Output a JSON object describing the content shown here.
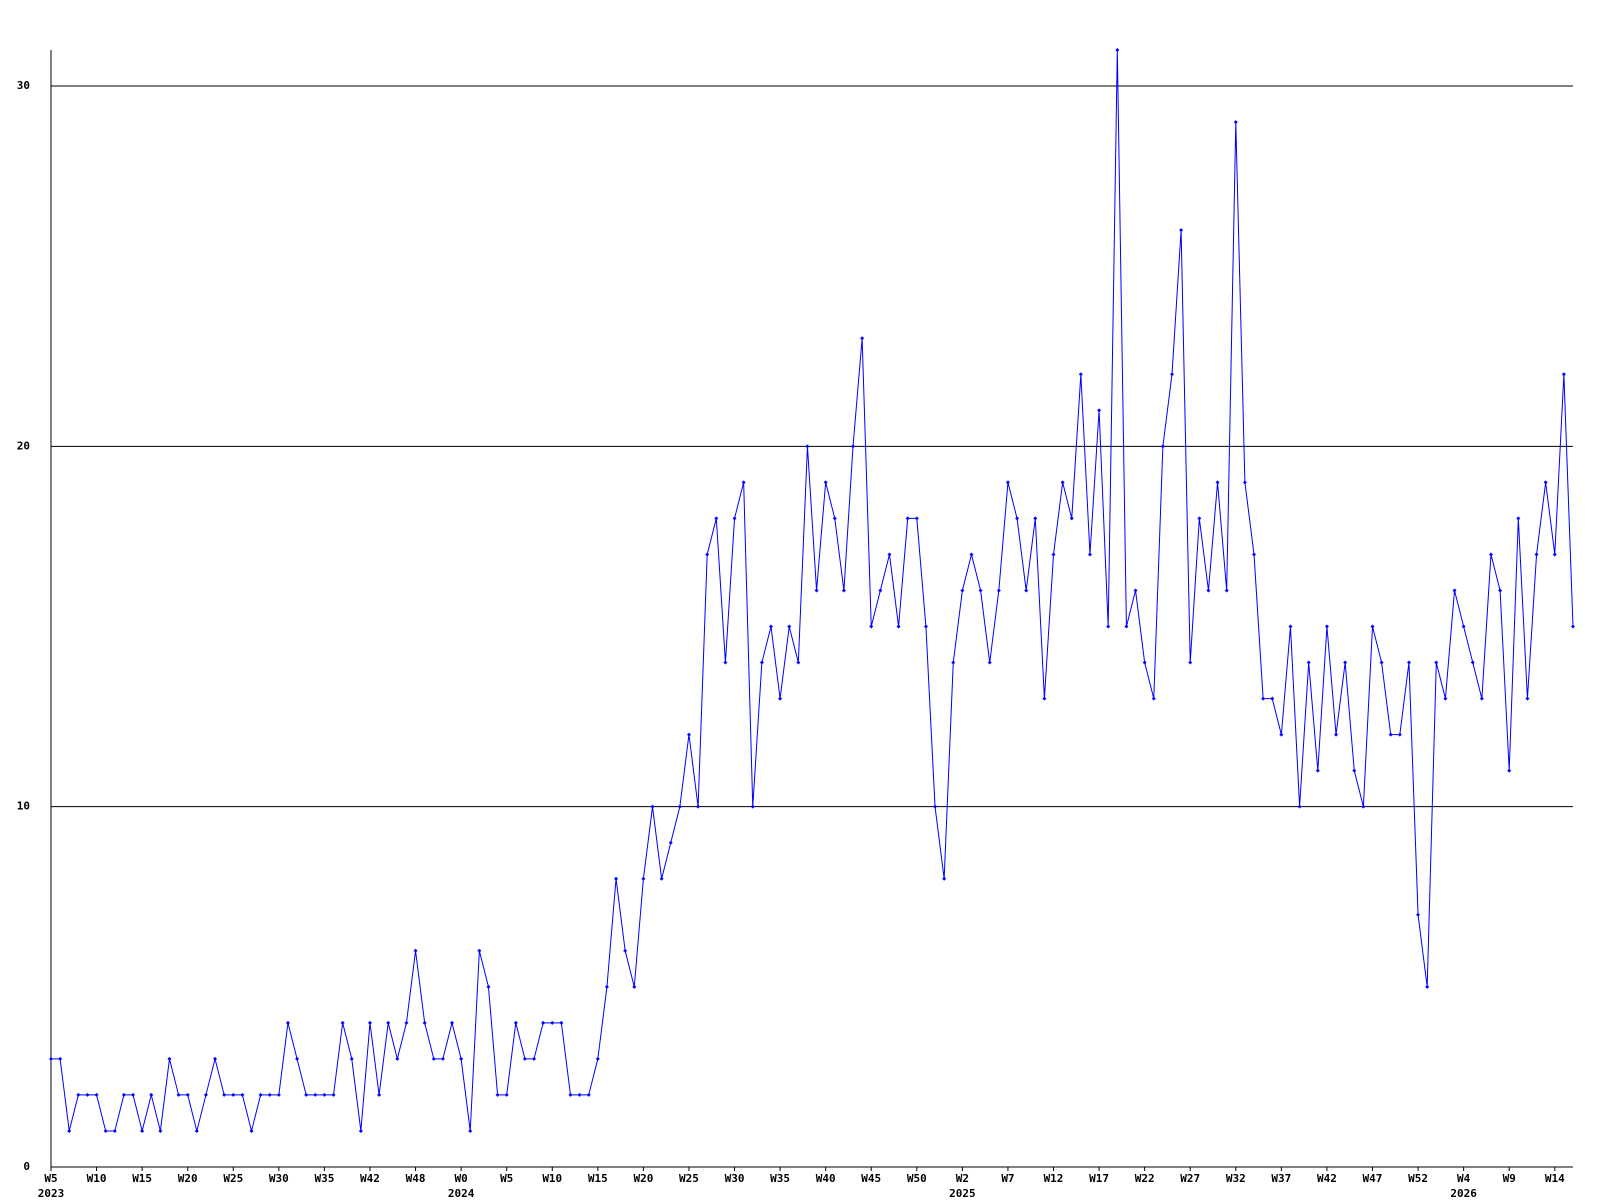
{
  "chart_data": {
    "type": "line",
    "categories": [
      "W5",
      null,
      null,
      null,
      null,
      "W10",
      null,
      null,
      null,
      null,
      "W15",
      null,
      null,
      null,
      null,
      "W20",
      null,
      null,
      null,
      null,
      "W25",
      null,
      null,
      null,
      null,
      "W30",
      null,
      null,
      null,
      null,
      "W35",
      null,
      null,
      null,
      null,
      "W42",
      null,
      null,
      null,
      null,
      "W48",
      null,
      null,
      null,
      null,
      "W0",
      null,
      null,
      null,
      null,
      "W5",
      null,
      null,
      null,
      null,
      "W10",
      null,
      null,
      null,
      null,
      "W15",
      null,
      null,
      null,
      null,
      "W20",
      null,
      null,
      null,
      null,
      "W25",
      null,
      null,
      null,
      null,
      "W30",
      null,
      null,
      null,
      null,
      "W35",
      null,
      null,
      null,
      null,
      "W40",
      null,
      null,
      null,
      null,
      "W45",
      null,
      null,
      null,
      null,
      "W50",
      null,
      null,
      null,
      null,
      "W2",
      null,
      null,
      null,
      null,
      "W7",
      null,
      null,
      null,
      null,
      "W12",
      null,
      null,
      null,
      null,
      "W17",
      null,
      null,
      null,
      null,
      "W22",
      null,
      null,
      null,
      null,
      "W27",
      null,
      null,
      null,
      null,
      "W32",
      null,
      null,
      null,
      null,
      "W37",
      null,
      null,
      null,
      null,
      "W42",
      null,
      null,
      null,
      null,
      "W47",
      null,
      null,
      null,
      null,
      "W52",
      null,
      null,
      null,
      null,
      "W4",
      null,
      null,
      null,
      null,
      "W9",
      null,
      null,
      null,
      null,
      "W14",
      null,
      null
    ],
    "year_labels": [
      "2023",
      null,
      null,
      null,
      null,
      null,
      null,
      null,
      null,
      null,
      null,
      null,
      null,
      null,
      null,
      null,
      null,
      null,
      null,
      null,
      null,
      null,
      null,
      null,
      null,
      null,
      null,
      null,
      null,
      null,
      null,
      null,
      null,
      null,
      null,
      null,
      null,
      null,
      null,
      null,
      null,
      null,
      null,
      null,
      null,
      "2024",
      null,
      null,
      null,
      null,
      null,
      null,
      null,
      null,
      null,
      null,
      null,
      null,
      null,
      null,
      null,
      null,
      null,
      null,
      null,
      null,
      null,
      null,
      null,
      null,
      null,
      null,
      null,
      null,
      null,
      null,
      null,
      null,
      null,
      null,
      null,
      null,
      null,
      null,
      null,
      null,
      null,
      null,
      null,
      null,
      null,
      null,
      null,
      null,
      null,
      null,
      null,
      null,
      null,
      null,
      "2025",
      null,
      null,
      null,
      null,
      null,
      null,
      null,
      null,
      null,
      null,
      null,
      null,
      null,
      null,
      null,
      null,
      null,
      null,
      null,
      null,
      null,
      null,
      null,
      null,
      null,
      null,
      null,
      null,
      null,
      null,
      null,
      null,
      null,
      null,
      null,
      null,
      null,
      null,
      null,
      null,
      null,
      null,
      null,
      null,
      null,
      null,
      null,
      null,
      null,
      null,
      null,
      null,
      null,
      null,
      "2026",
      null,
      null,
      null,
      null,
      null,
      null,
      null,
      null,
      null,
      null,
      null,
      null
    ],
    "series": [
      {
        "color": "#0000ff",
        "values": [
          3,
          3,
          1,
          2,
          2,
          2,
          1,
          1,
          2,
          2,
          1,
          2,
          1,
          3,
          2,
          2,
          1,
          2,
          3,
          2,
          2,
          2,
          1,
          2,
          2,
          2,
          4,
          3,
          2,
          2,
          2,
          2,
          4,
          3,
          1,
          4,
          2,
          4,
          3,
          4,
          6,
          4,
          3,
          3,
          4,
          3,
          1,
          6,
          5,
          2,
          2,
          4,
          3,
          3,
          4,
          4,
          4,
          2,
          2,
          2,
          3,
          5,
          8,
          6,
          5,
          8,
          10,
          8,
          9,
          10,
          12,
          10,
          17,
          18,
          14,
          18,
          19,
          10,
          14,
          15,
          13,
          15,
          14,
          20,
          16,
          19,
          18,
          16,
          20,
          23,
          15,
          16,
          17,
          15,
          18,
          18,
          15,
          10,
          8,
          14,
          16,
          17,
          16,
          14,
          16,
          19,
          18,
          16,
          18,
          13,
          17,
          19,
          18,
          22,
          17,
          21,
          15,
          31,
          15,
          16,
          14,
          13,
          20,
          22,
          26,
          14,
          18,
          16,
          19,
          16,
          29,
          19,
          17,
          13,
          13,
          12,
          15,
          10,
          14,
          11,
          15,
          12,
          14,
          11,
          10,
          15,
          14,
          12,
          12,
          14,
          7,
          5,
          14,
          13,
          16,
          15,
          14,
          13,
          17,
          16,
          11,
          18,
          13,
          17,
          19,
          17,
          22,
          15
        ]
      }
    ],
    "ylim": [
      0,
      31
    ],
    "yticks": [
      0,
      10,
      20,
      30
    ],
    "grid": true
  }
}
